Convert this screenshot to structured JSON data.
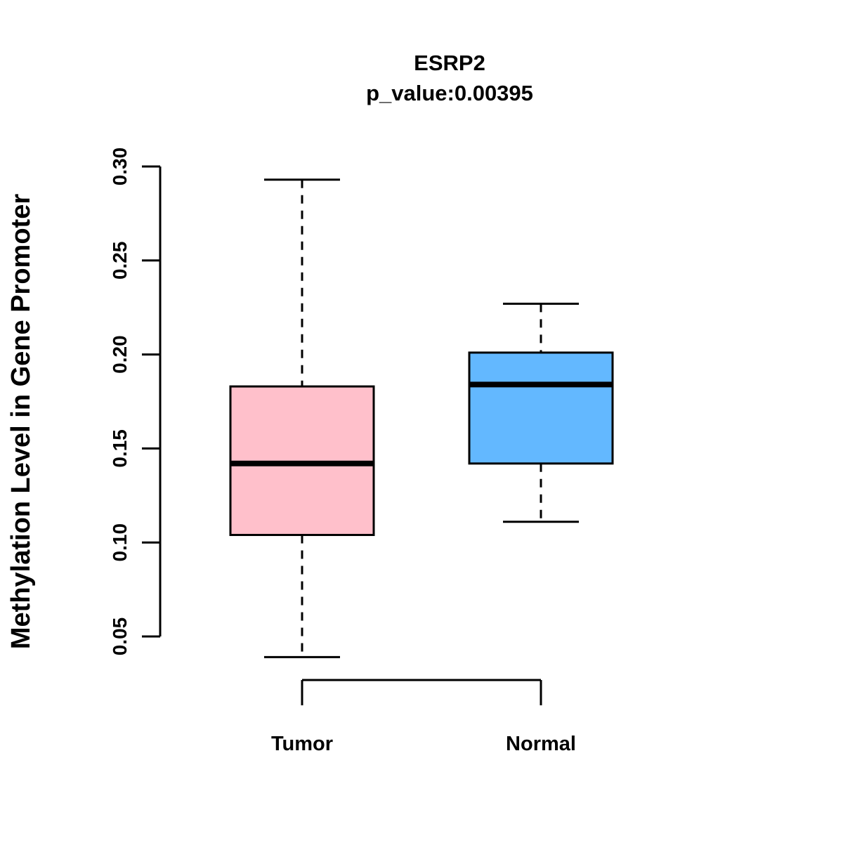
{
  "chart_data": {
    "type": "box",
    "title": "ESRP2",
    "subtitle": "p_value:0.00395",
    "ylabel": "Methylation Level in Gene Promoter",
    "xlabel": "",
    "categories": [
      "Tumor",
      "Normal"
    ],
    "yticks": [
      0.05,
      0.1,
      0.15,
      0.2,
      0.25,
      0.3
    ],
    "ylim": [
      0.05,
      0.3
    ],
    "grid": false,
    "legend": "none",
    "series": [
      {
        "name": "Tumor",
        "color": "#FFC0CB",
        "lower_whisker": 0.039,
        "q1": 0.104,
        "median": 0.142,
        "q3": 0.183,
        "upper_whisker": 0.293
      },
      {
        "name": "Normal",
        "color": "#63B8FF",
        "lower_whisker": 0.111,
        "q1": 0.142,
        "median": 0.184,
        "q3": 0.201,
        "upper_whisker": 0.227
      }
    ],
    "box_outline_color": "#000000",
    "background_color": "#FFFFFF"
  }
}
